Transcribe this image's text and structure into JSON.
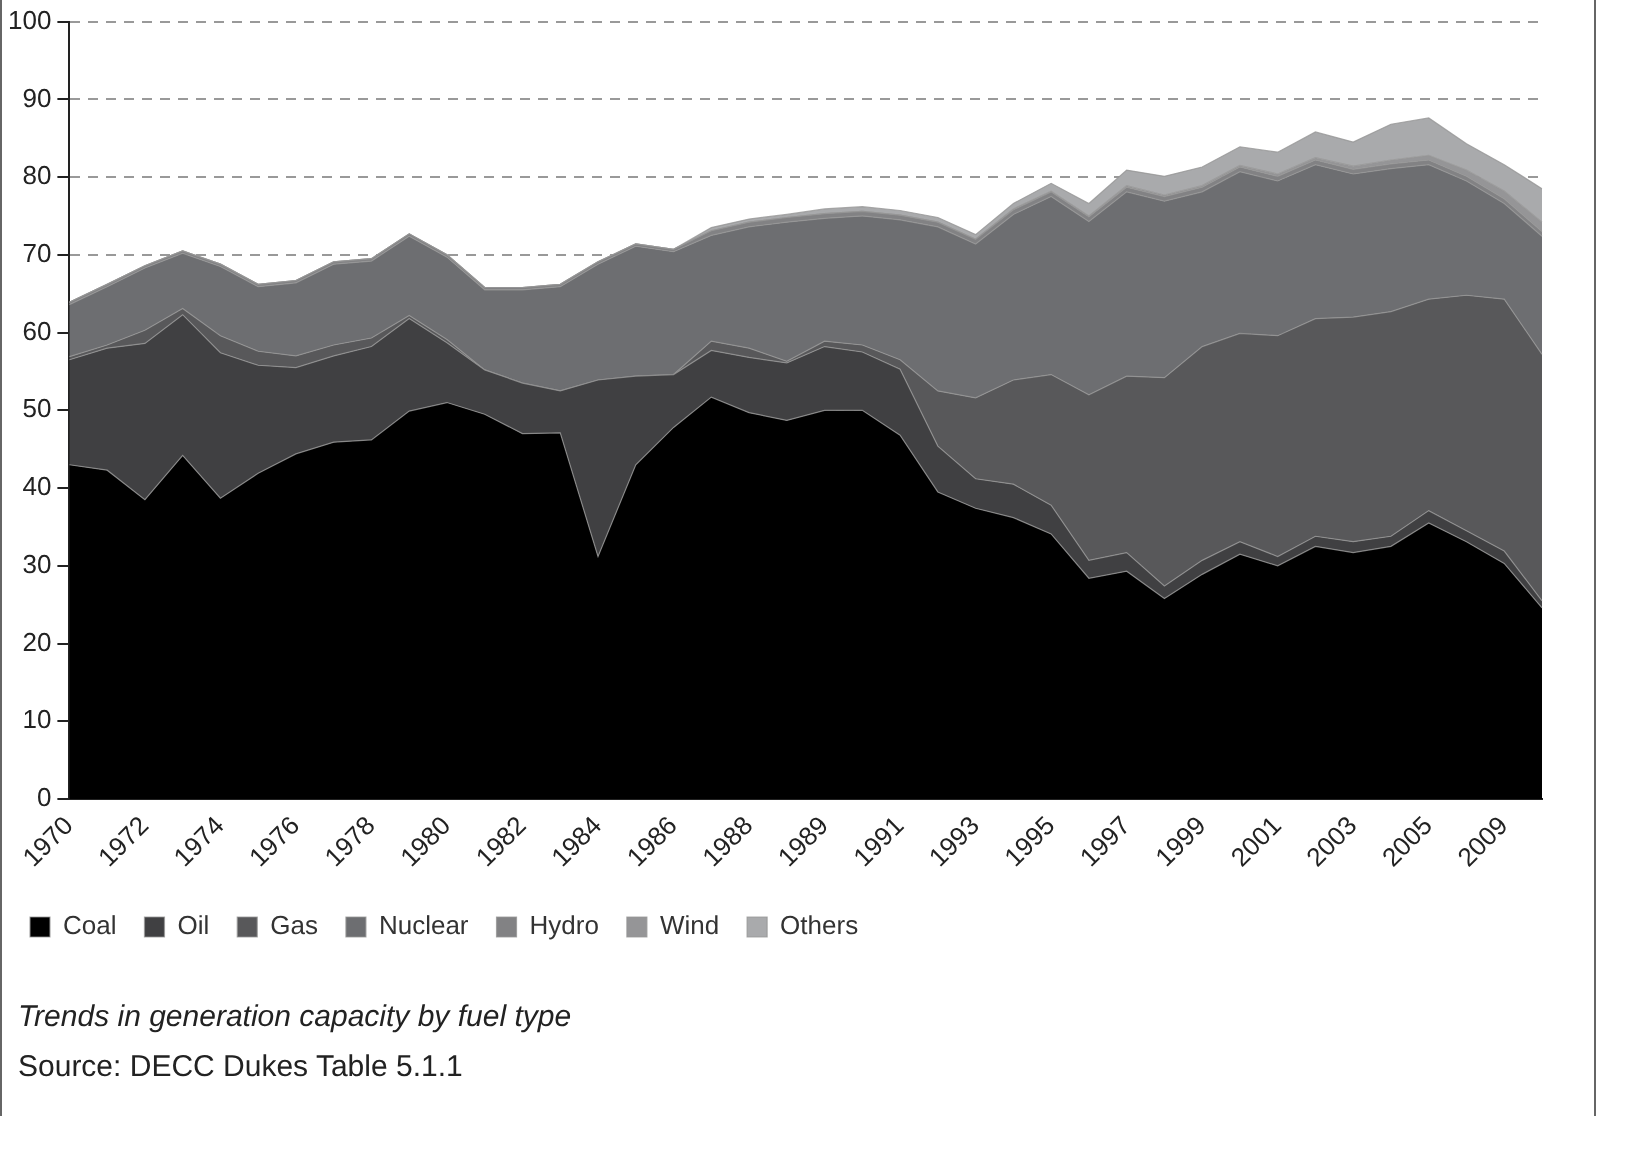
{
  "chart_data": {
    "type": "area",
    "stacked": true,
    "categories": [
      "1970",
      null,
      "1972",
      null,
      "1974",
      null,
      "1976",
      null,
      "1978",
      null,
      "1980",
      null,
      "1982",
      null,
      "1984",
      null,
      "1986",
      null,
      "1988",
      null,
      "1989",
      null,
      "1991",
      null,
      "1993",
      null,
      "1995",
      null,
      "1997",
      null,
      "1999",
      null,
      "2001",
      null,
      "2003",
      null,
      "2005",
      null,
      "2009",
      null
    ],
    "series": [
      {
        "name": "Coal",
        "color": "#000000",
        "values": [
          43.0,
          42.3,
          38.5,
          44.2,
          38.7,
          41.9,
          44.4,
          45.9,
          46.2,
          49.9,
          51.0,
          49.5,
          47.0,
          47.1,
          31.2,
          43.0,
          47.8,
          51.7,
          49.7,
          48.7,
          50.0,
          50.0,
          46.8,
          39.5,
          37.4,
          36.2,
          34.1,
          28.4,
          29.3,
          25.8,
          28.9,
          31.5,
          30.0,
          32.5,
          31.7,
          32.5,
          35.5,
          33.1,
          30.3,
          24.6
        ]
      },
      {
        "name": "Oil",
        "color": "#404042",
        "values": [
          13.5,
          15.7,
          20.1,
          18.1,
          18.7,
          13.9,
          11.1,
          11.1,
          12.0,
          11.9,
          7.7,
          5.7,
          6.5,
          5.4,
          22.7,
          11.4,
          6.8,
          6.0,
          7.1,
          7.4,
          8.2,
          7.5,
          8.5,
          5.9,
          3.8,
          4.3,
          3.7,
          2.3,
          2.4,
          1.6,
          1.8,
          1.6,
          1.2,
          1.3,
          1.4,
          1.3,
          1.6,
          1.4,
          1.6,
          0.9
        ]
      },
      {
        "name": "Gas",
        "color": "#58585a",
        "values": [
          0.4,
          0.4,
          1.7,
          0.8,
          2.2,
          1.8,
          1.5,
          1.4,
          1.1,
          0.4,
          0.4,
          0,
          0,
          0,
          0,
          0,
          0,
          1.2,
          1.2,
          0.2,
          0.7,
          0.9,
          1.2,
          7.1,
          10.4,
          13.4,
          16.8,
          21.3,
          22.7,
          26.8,
          27.5,
          26.8,
          28.4,
          28.0,
          28.9,
          28.9,
          27.2,
          30.3,
          32.4,
          31.7
        ]
      },
      {
        "name": "Nuclear",
        "color": "#6d6e71",
        "values": [
          6.7,
          7.5,
          8.0,
          7.1,
          8.9,
          8.3,
          9.4,
          10.4,
          9.9,
          10.2,
          10.6,
          10.3,
          12.0,
          13.4,
          14.9,
          16.7,
          15.8,
          13.6,
          15.6,
          17.9,
          15.8,
          16.6,
          18.0,
          21.1,
          19.8,
          21.3,
          22.9,
          22.3,
          23.7,
          22.7,
          19.9,
          20.8,
          19.9,
          19.8,
          18.4,
          18.4,
          17.3,
          14.7,
          12.3,
          15.2
        ]
      },
      {
        "name": "Hydro",
        "color": "#828284",
        "values": [
          0.3,
          0.3,
          0.3,
          0.3,
          0.3,
          0.3,
          0.3,
          0.3,
          0.3,
          0.3,
          0.3,
          0.3,
          0.3,
          0.3,
          0.3,
          0.3,
          0.3,
          0.6,
          0.6,
          0.6,
          0.6,
          0.6,
          0.6,
          0.6,
          0.6,
          0.6,
          0.6,
          0.6,
          0.6,
          0.6,
          0.6,
          0.6,
          0.6,
          0.6,
          0.6,
          0.6,
          0.6,
          0.6,
          0.6,
          0.6
        ]
      },
      {
        "name": "Wind",
        "color": "#959597",
        "values": [
          0,
          0,
          0,
          0,
          0,
          0,
          0,
          0,
          0,
          0,
          0,
          0,
          0,
          0,
          0,
          0,
          0,
          0,
          0,
          0,
          0,
          0,
          0,
          0,
          0,
          0.1,
          0.1,
          0.1,
          0.2,
          0.2,
          0.2,
          0.2,
          0.3,
          0.3,
          0.4,
          0.5,
          0.6,
          0.8,
          1.0,
          1.2
        ]
      },
      {
        "name": "Others",
        "color": "#a9aaac",
        "values": [
          0,
          0,
          0,
          0,
          0,
          0,
          0,
          0,
          0,
          0,
          0,
          0,
          0,
          0,
          0,
          0,
          0,
          0.4,
          0.4,
          0.4,
          0.6,
          0.6,
          0.6,
          0.6,
          0.6,
          0.7,
          1.0,
          1.6,
          2.0,
          2.4,
          2.4,
          2.4,
          2.8,
          3.3,
          3.1,
          4.6,
          4.8,
          3.4,
          3.4,
          4.3
        ]
      }
    ],
    "ylim": [
      0,
      100
    ],
    "yticks": [
      0,
      10,
      20,
      30,
      40,
      50,
      60,
      70,
      80,
      90,
      100
    ],
    "grid": "y",
    "legend": "bottom",
    "annotations": [
      "Trends in generation capacity by fuel type",
      "Source: DECC Dukes Table 5.1.1"
    ]
  }
}
